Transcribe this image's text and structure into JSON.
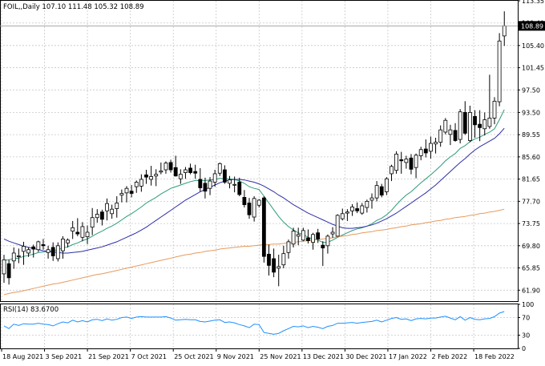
{
  "header": "FOIL,,Daily  107.10 111.48 105.32 108.89",
  "chart_data": [
    {
      "type": "candlestick",
      "symbol": "FOIL,",
      "timeframe": "Daily",
      "ohlc_label": "107.10 111.48 105.32 108.89",
      "ylim": [
        59.95,
        113.35
      ],
      "y_ticks": [
        "113.35",
        "109.40",
        "105.40",
        "101.45",
        "97.50",
        "93.50",
        "89.55",
        "85.60",
        "81.65",
        "77.70",
        "73.75",
        "69.80",
        "65.85",
        "61.90"
      ],
      "current_price": "108.89",
      "x_ticks": [
        "18 Aug 2021",
        "3 Sep 2021",
        "21 Sep 2021",
        "7 Oct 2021",
        "25 Oct 2021",
        "9 Nov 2021",
        "25 Nov 2021",
        "13 Dec 2021",
        "30 Dec 2021",
        "17 Jan 2022",
        "2 Feb 2022",
        "18 Feb 2022"
      ],
      "candles": [
        [
          64.8,
          68.2,
          63.2,
          67.3
        ],
        [
          66.6,
          67.3,
          62.9,
          64.1
        ],
        [
          67.1,
          69.5,
          65.7,
          68.5
        ],
        [
          68.0,
          69.3,
          66.7,
          68.0
        ],
        [
          68.8,
          70.5,
          66.4,
          69.7
        ],
        [
          68.5,
          69.5,
          67.8,
          69.1
        ],
        [
          69.6,
          70.0,
          67.7,
          69.2
        ],
        [
          69.1,
          70.7,
          68.7,
          70.5
        ],
        [
          70.0,
          71.0,
          69.1,
          69.8
        ],
        [
          68.6,
          69.8,
          67.5,
          69.1
        ],
        [
          69.5,
          70.4,
          67.1,
          68.0
        ],
        [
          67.5,
          70.4,
          67.0,
          69.8
        ],
        [
          68.9,
          71.5,
          67.5,
          71.0
        ],
        [
          70.3,
          71.1,
          69.5,
          70.8
        ],
        [
          72.4,
          74.2,
          71.0,
          73.0
        ],
        [
          72.2,
          74.7,
          71.5,
          71.9
        ],
        [
          71.3,
          74.0,
          70.6,
          73.2
        ],
        [
          71.4,
          73.4,
          70.1,
          72.2
        ],
        [
          73.1,
          76.5,
          71.7,
          74.8
        ],
        [
          74.8,
          76.3,
          73.9,
          75.4
        ],
        [
          75.8,
          76.2,
          73.4,
          74.5
        ],
        [
          76.0,
          78.2,
          74.3,
          77.3
        ],
        [
          75.5,
          77.1,
          74.6,
          76.3
        ],
        [
          76.4,
          78.6,
          74.8,
          77.4
        ],
        [
          78.8,
          79.8,
          77.5,
          79.1
        ],
        [
          79.2,
          80.4,
          77.5,
          80.0
        ],
        [
          79.5,
          80.6,
          78.4,
          79.1
        ],
        [
          80.3,
          81.4,
          79.2,
          81.1
        ],
        [
          80.4,
          82.5,
          79.4,
          81.6
        ],
        [
          82.4,
          83.3,
          80.8,
          82.0
        ],
        [
          81.6,
          84.0,
          80.5,
          82.1
        ],
        [
          82.2,
          83.4,
          80.4,
          82.5
        ],
        [
          82.9,
          84.6,
          82.5,
          83.1
        ],
        [
          83.3,
          84.8,
          82.6,
          84.5
        ],
        [
          84.6,
          85.1,
          82.8,
          83.3
        ],
        [
          83.7,
          85.8,
          82.1,
          82.2
        ],
        [
          81.7,
          83.4,
          80.8,
          82.5
        ],
        [
          82.8,
          83.8,
          81.7,
          83.3
        ],
        [
          83.6,
          84.4,
          82.5,
          82.8
        ],
        [
          83.0,
          84.2,
          81.7,
          82.7
        ],
        [
          81.6,
          83.6,
          79.4,
          80.1
        ],
        [
          80.9,
          81.9,
          78.2,
          79.5
        ],
        [
          80.0,
          82.0,
          78.8,
          81.3
        ],
        [
          81.1,
          83.3,
          80.3,
          82.6
        ],
        [
          82.7,
          84.6,
          82.2,
          84.4
        ],
        [
          83.3,
          84.1,
          80.8,
          81.1
        ],
        [
          80.9,
          82.2,
          80.0,
          81.5
        ],
        [
          80.6,
          82.1,
          79.3,
          80.7
        ],
        [
          81.1,
          81.9,
          78.6,
          78.9
        ],
        [
          78.4,
          79.7,
          76.6,
          77.1
        ],
        [
          77.4,
          78.3,
          74.6,
          75.3
        ],
        [
          74.9,
          78.6,
          74.1,
          78.2
        ],
        [
          77.0,
          78.1,
          76.6,
          77.9
        ],
        [
          78.3,
          78.6,
          66.8,
          67.9
        ],
        [
          68.3,
          70.0,
          64.5,
          66.3
        ],
        [
          67.5,
          69.3,
          64.2,
          65.1
        ],
        [
          65.8,
          68.2,
          62.6,
          66.1
        ],
        [
          66.4,
          69.8,
          65.8,
          68.4
        ],
        [
          68.6,
          70.9,
          67.5,
          70.5
        ],
        [
          70.1,
          73.0,
          69.5,
          72.4
        ],
        [
          71.5,
          73.0,
          69.9,
          71.8
        ],
        [
          70.8,
          73.0,
          70.6,
          72.5
        ],
        [
          71.2,
          72.7,
          70.2,
          70.7
        ],
        [
          70.4,
          72.1,
          69.1,
          71.8
        ],
        [
          72.1,
          72.8,
          70.3,
          71.0
        ],
        [
          69.9,
          70.6,
          66.2,
          69.4
        ],
        [
          69.8,
          71.8,
          68.4,
          71.5
        ],
        [
          71.9,
          73.1,
          71.2,
          72.2
        ],
        [
          71.5,
          75.4,
          71.4,
          75.2
        ],
        [
          74.6,
          76.4,
          74.3,
          75.5
        ],
        [
          75.6,
          76.3,
          74.2,
          75.8
        ],
        [
          76.0,
          77.2,
          75.1,
          76.7
        ],
        [
          76.4,
          77.5,
          75.6,
          76.0
        ],
        [
          75.6,
          77.4,
          75.3,
          76.9
        ],
        [
          76.6,
          78.0,
          75.7,
          77.7
        ],
        [
          77.9,
          79.1,
          76.4,
          78.3
        ],
        [
          78.3,
          81.3,
          77.7,
          80.5
        ],
        [
          80.3,
          80.8,
          78.4,
          78.8
        ],
        [
          79.4,
          82.0,
          78.8,
          81.7
        ],
        [
          82.6,
          84.2,
          81.3,
          83.9
        ],
        [
          83.2,
          86.6,
          82.6,
          86.1
        ],
        [
          85.1,
          86.5,
          82.6,
          84.9
        ],
        [
          84.6,
          85.8,
          83.5,
          85.2
        ],
        [
          85.4,
          86.1,
          82.5,
          83.4
        ],
        [
          83.7,
          86.2,
          81.8,
          85.9
        ],
        [
          85.8,
          87.4,
          85.0,
          86.9
        ],
        [
          87.0,
          88.7,
          85.5,
          86.3
        ],
        [
          86.6,
          89.2,
          85.3,
          88.0
        ],
        [
          87.9,
          89.0,
          86.2,
          88.2
        ],
        [
          88.2,
          91.2,
          87.4,
          90.4
        ],
        [
          90.0,
          92.5,
          89.6,
          92.1
        ],
        [
          89.6,
          91.3,
          87.7,
          90.4
        ],
        [
          90.3,
          91.6,
          88.3,
          88.5
        ],
        [
          88.7,
          94.1,
          88.0,
          93.6
        ],
        [
          93.5,
          95.5,
          89.5,
          89.8
        ],
        [
          88.5,
          94.7,
          88.2,
          93.5
        ],
        [
          92.8,
          93.9,
          89.0,
          91.3
        ],
        [
          91.4,
          93.9,
          88.4,
          90.8
        ],
        [
          90.6,
          93.5,
          89.4,
          92.2
        ],
        [
          91.0,
          100.2,
          90.6,
          92.5
        ],
        [
          92.5,
          96.2,
          91.4,
          95.5
        ],
        [
          95.4,
          107.6,
          94.6,
          106.2
        ],
        [
          107.1,
          111.48,
          105.32,
          108.89
        ]
      ],
      "series": [
        {
          "name": "",
          "color": "#2e9b7a",
          "values": [
            67.2,
            67.3,
            67.5,
            67.6,
            67.9,
            68.1,
            68.3,
            68.6,
            68.7,
            68.8,
            68.9,
            69.1,
            69.4,
            69.6,
            70.0,
            70.3,
            70.7,
            71.0,
            71.5,
            72.0,
            72.4,
            72.9,
            73.3,
            73.8,
            74.4,
            75.0,
            75.5,
            76.1,
            76.7,
            77.4,
            77.9,
            78.4,
            79.0,
            79.5,
            80.0,
            80.3,
            80.6,
            80.9,
            81.2,
            81.4,
            81.4,
            81.4,
            81.5,
            81.6,
            81.8,
            81.7,
            81.7,
            81.6,
            81.3,
            80.9,
            80.3,
            80.0,
            79.8,
            78.6,
            77.4,
            76.2,
            75.0,
            74.0,
            73.2,
            72.6,
            72.1,
            71.8,
            71.3,
            71.0,
            70.8,
            70.4,
            70.4,
            70.8,
            71.3,
            71.7,
            72.1,
            72.5,
            72.8,
            73.0,
            73.3,
            73.7,
            74.3,
            74.7,
            75.3,
            76.1,
            77.1,
            78.0,
            78.8,
            79.4,
            80.2,
            81.0,
            81.7,
            82.4,
            83.2,
            84.0,
            84.9,
            85.6,
            86.2,
            87.1,
            87.6,
            88.3,
            88.8,
            89.1,
            89.6,
            90.0,
            90.6,
            92.2,
            94.0
          ]
        },
        {
          "name": "",
          "color": "#2e2ea8",
          "values": [
            71.0,
            70.6,
            70.3,
            70.0,
            69.7,
            69.5,
            69.3,
            69.1,
            68.9,
            68.8,
            68.7,
            68.6,
            68.5,
            68.5,
            68.6,
            68.7,
            68.8,
            69.0,
            69.2,
            69.4,
            69.6,
            69.9,
            70.2,
            70.5,
            70.9,
            71.3,
            71.7,
            72.1,
            72.6,
            73.1,
            73.7,
            74.3,
            74.9,
            75.5,
            76.1,
            76.7,
            77.3,
            77.9,
            78.4,
            78.9,
            79.4,
            79.8,
            80.2,
            80.6,
            81.0,
            81.3,
            81.5,
            81.6,
            81.6,
            81.5,
            81.3,
            81.1,
            80.8,
            80.4,
            79.9,
            79.4,
            78.8,
            78.3,
            77.7,
            77.1,
            76.6,
            76.1,
            75.6,
            75.2,
            74.8,
            74.4,
            74.0,
            73.6,
            73.3,
            73.0,
            72.9,
            72.9,
            73.0,
            73.1,
            73.3,
            73.5,
            73.8,
            74.2,
            74.6,
            75.1,
            75.6,
            76.2,
            76.8,
            77.4,
            78.0,
            78.6,
            79.2,
            79.9,
            80.6,
            81.4,
            82.2,
            83.0,
            83.8,
            84.6,
            85.3,
            86.1,
            86.8,
            87.4,
            87.9,
            88.4,
            88.9,
            89.7,
            90.7
          ]
        },
        {
          "name": "",
          "color": "#e89a5c",
          "values": [
            61.1,
            61.3,
            61.5,
            61.6,
            61.8,
            62.0,
            62.2,
            62.4,
            62.6,
            62.8,
            63.0,
            63.1,
            63.3,
            63.5,
            63.7,
            63.9,
            64.1,
            64.3,
            64.5,
            64.7,
            64.8,
            65.0,
            65.2,
            65.4,
            65.6,
            65.8,
            66.0,
            66.2,
            66.4,
            66.6,
            66.8,
            67.0,
            67.2,
            67.4,
            67.6,
            67.8,
            68.0,
            68.2,
            68.3,
            68.5,
            68.6,
            68.8,
            68.9,
            69.0,
            69.2,
            69.3,
            69.4,
            69.5,
            69.6,
            69.7,
            69.7,
            69.8,
            69.9,
            70.0,
            70.0,
            70.1,
            70.1,
            70.2,
            70.3,
            70.4,
            70.5,
            70.6,
            70.7,
            70.8,
            70.9,
            71.0,
            71.1,
            71.2,
            71.4,
            71.5,
            71.6,
            71.8,
            71.9,
            72.1,
            72.2,
            72.3,
            72.5,
            72.6,
            72.7,
            72.9,
            73.0,
            73.2,
            73.3,
            73.5,
            73.6,
            73.7,
            73.9,
            74.0,
            74.2,
            74.3,
            74.5,
            74.6,
            74.8,
            74.9,
            75.0,
            75.2,
            75.3,
            75.5,
            75.6,
            75.8,
            75.9,
            76.1,
            76.3
          ]
        }
      ]
    },
    {
      "type": "line",
      "label": "RSI(14) 83.6700",
      "ylim": [
        0,
        100
      ],
      "y_ticks": [
        "100",
        "70",
        "30",
        "0"
      ],
      "color": "#1e90ff",
      "values": [
        51,
        45,
        55,
        52,
        56,
        55,
        55,
        57,
        55,
        54,
        51,
        56,
        60,
        58,
        64,
        60,
        63,
        60,
        65,
        66,
        63,
        67,
        64,
        66,
        70,
        71,
        68,
        71,
        72,
        71,
        71,
        71,
        71,
        72,
        69,
        64,
        65,
        66,
        65,
        65,
        61,
        60,
        62,
        64,
        65,
        59,
        60,
        58,
        54,
        51,
        47,
        55,
        54,
        36,
        34,
        32,
        34,
        40,
        45,
        50,
        49,
        51,
        47,
        50,
        48,
        45,
        50,
        52,
        57,
        57,
        58,
        59,
        57,
        59,
        60,
        61,
        64,
        60,
        64,
        68,
        70,
        66,
        67,
        63,
        67,
        68,
        67,
        69,
        69,
        71,
        73,
        69,
        65,
        72,
        64,
        70,
        66,
        65,
        67,
        68,
        72,
        80,
        83.67
      ]
    }
  ]
}
